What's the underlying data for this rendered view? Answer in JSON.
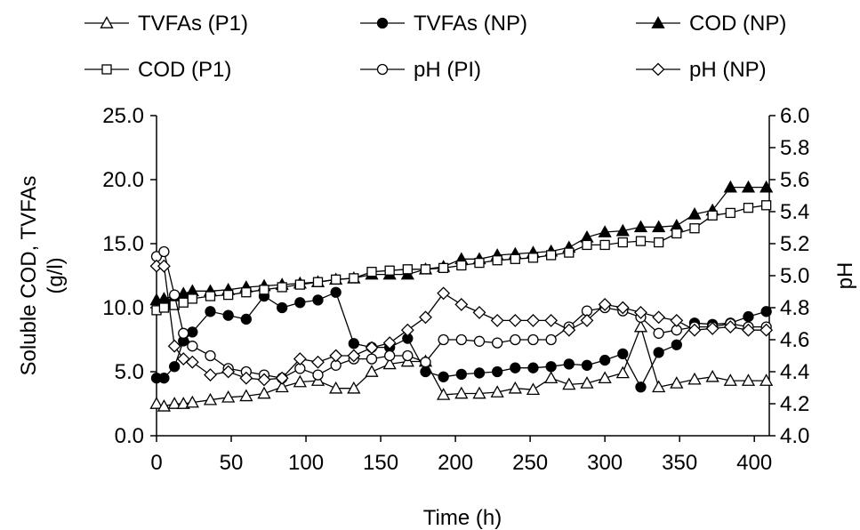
{
  "chart_data": {
    "type": "line",
    "title": "",
    "xlabel": "Time (h)",
    "ylabel": "Soluble COD, TVFAs (g/l)",
    "ylabel_lines": [
      "Soluble COD, TVFAs",
      "(g/l)"
    ],
    "y2label": "pH",
    "xlim": [
      0,
      410
    ],
    "xticks": [
      0,
      50,
      100,
      150,
      200,
      250,
      300,
      350,
      400
    ],
    "xtick_labels": [
      "0",
      "50",
      "100",
      "150",
      "200",
      "250",
      "300",
      "350",
      "400"
    ],
    "ylim": [
      0,
      25
    ],
    "yticks": [
      0,
      5,
      10,
      15,
      20,
      25
    ],
    "ytick_labels": [
      "0.0",
      "5.0",
      "10.0",
      "15.0",
      "20.0",
      "25.0"
    ],
    "y2lim": [
      4.0,
      6.0
    ],
    "y2ticks": [
      4.0,
      4.2,
      4.4,
      4.6,
      4.8,
      5.0,
      5.2,
      5.4,
      5.6,
      5.8,
      6.0
    ],
    "y2tick_labels": [
      "4.0",
      "4.2",
      "4.4",
      "4.6",
      "4.8",
      "5.0",
      "5.2",
      "5.4",
      "5.6",
      "5.8",
      "6.0"
    ],
    "grid": false,
    "legend_position": "top",
    "series": [
      {
        "name": "TVFAs (P1)",
        "marker": "triangle-open",
        "axis": "left",
        "x": [
          0,
          5,
          12,
          18,
          24,
          36,
          48,
          60,
          72,
          84,
          96,
          108,
          120,
          132,
          144,
          156,
          168,
          180,
          192,
          204,
          216,
          228,
          240,
          252,
          264,
          276,
          288,
          300,
          312,
          324,
          336,
          348,
          360,
          372,
          384,
          396,
          408
        ],
        "y": [
          2.5,
          2.3,
          2.5,
          2.5,
          2.6,
          2.8,
          3.0,
          3.1,
          3.3,
          3.8,
          4.2,
          4.3,
          3.7,
          3.7,
          5.0,
          5.6,
          5.8,
          5.8,
          3.2,
          3.3,
          3.3,
          3.4,
          3.7,
          3.6,
          4.5,
          4.0,
          4.1,
          4.5,
          4.9,
          8.5,
          3.8,
          4.1,
          4.4,
          4.6,
          4.3,
          4.3,
          4.3
        ]
      },
      {
        "name": "TVFAs (NP)",
        "marker": "circle-filled",
        "axis": "left",
        "x": [
          0,
          5,
          12,
          18,
          24,
          36,
          48,
          60,
          72,
          84,
          96,
          108,
          120,
          132,
          144,
          156,
          168,
          180,
          192,
          204,
          216,
          228,
          240,
          252,
          264,
          276,
          288,
          300,
          312,
          324,
          336,
          348,
          360,
          372,
          384,
          396,
          408
        ],
        "y": [
          4.5,
          4.5,
          5.4,
          7.4,
          8.1,
          9.7,
          9.4,
          9.1,
          10.9,
          10.0,
          10.4,
          10.6,
          11.2,
          7.2,
          6.9,
          6.9,
          7.6,
          5.0,
          4.6,
          4.8,
          4.9,
          5.0,
          5.3,
          5.3,
          5.4,
          5.6,
          5.5,
          5.9,
          6.4,
          3.8,
          6.5,
          7.1,
          8.8,
          8.7,
          8.8,
          9.3,
          9.7
        ]
      },
      {
        "name": "COD (NP)",
        "marker": "triangle-filled",
        "axis": "left",
        "x": [
          0,
          5,
          12,
          18,
          24,
          36,
          48,
          60,
          72,
          84,
          96,
          108,
          120,
          132,
          144,
          156,
          168,
          180,
          192,
          204,
          216,
          228,
          240,
          252,
          264,
          276,
          288,
          300,
          312,
          324,
          336,
          348,
          360,
          372,
          384,
          396,
          408
        ],
        "y": [
          10.6,
          10.7,
          10.9,
          11.1,
          11.3,
          11.3,
          11.4,
          11.6,
          11.7,
          11.8,
          11.9,
          12.0,
          12.2,
          12.3,
          12.6,
          12.6,
          12.6,
          13.0,
          13.2,
          13.8,
          13.8,
          14.1,
          14.2,
          14.3,
          14.4,
          14.7,
          15.5,
          15.9,
          16.0,
          16.3,
          16.3,
          16.4,
          17.3,
          17.6,
          19.4,
          19.4,
          19.4
        ]
      },
      {
        "name": "COD (P1)",
        "marker": "square-open",
        "axis": "left",
        "x": [
          0,
          5,
          12,
          18,
          24,
          36,
          48,
          60,
          72,
          84,
          96,
          108,
          120,
          132,
          144,
          156,
          168,
          180,
          192,
          204,
          216,
          228,
          240,
          252,
          264,
          276,
          288,
          300,
          312,
          324,
          336,
          348,
          360,
          372,
          384,
          396,
          408
        ],
        "y": [
          9.8,
          10.0,
          10.2,
          10.4,
          10.7,
          10.9,
          11.0,
          11.2,
          11.4,
          11.6,
          11.8,
          12.0,
          12.2,
          12.3,
          12.8,
          12.9,
          13.0,
          13.0,
          13.1,
          13.3,
          13.5,
          13.7,
          13.8,
          13.9,
          14.1,
          14.3,
          14.9,
          14.9,
          15.1,
          15.2,
          15.1,
          15.8,
          16.2,
          17.2,
          17.4,
          17.8,
          18.0
        ]
      },
      {
        "name": "pH (PI)",
        "marker": "circle-open",
        "axis": "right",
        "x": [
          0,
          5,
          12,
          18,
          24,
          36,
          48,
          60,
          72,
          84,
          96,
          108,
          120,
          132,
          144,
          156,
          168,
          180,
          192,
          204,
          216,
          228,
          240,
          252,
          264,
          276,
          288,
          300,
          312,
          324,
          336,
          348,
          360,
          372,
          384,
          396,
          408
        ],
        "y": [
          5.12,
          5.15,
          4.88,
          4.64,
          4.56,
          4.5,
          4.42,
          4.4,
          4.38,
          4.36,
          4.42,
          4.38,
          4.44,
          4.48,
          4.48,
          4.5,
          4.5,
          4.46,
          4.6,
          4.6,
          4.59,
          4.58,
          4.6,
          4.6,
          4.6,
          4.68,
          4.78,
          4.8,
          4.78,
          4.74,
          4.64,
          4.66,
          4.68,
          4.68,
          4.7,
          4.68,
          4.68
        ]
      },
      {
        "name": "pH (NP)",
        "marker": "diamond-open",
        "axis": "right",
        "x": [
          0,
          5,
          12,
          18,
          24,
          36,
          48,
          60,
          72,
          84,
          96,
          108,
          120,
          132,
          144,
          156,
          168,
          180,
          192,
          204,
          216,
          228,
          240,
          252,
          264,
          276,
          288,
          300,
          312,
          324,
          336,
          348,
          360,
          372,
          384,
          396,
          408
        ],
        "y": [
          5.06,
          5.06,
          4.56,
          4.48,
          4.46,
          4.38,
          4.4,
          4.36,
          4.35,
          4.36,
          4.48,
          4.46,
          4.5,
          4.5,
          4.55,
          4.58,
          4.66,
          4.74,
          4.89,
          4.82,
          4.77,
          4.72,
          4.72,
          4.72,
          4.72,
          4.66,
          4.72,
          4.82,
          4.8,
          4.77,
          4.74,
          4.72,
          4.66,
          4.67,
          4.68,
          4.66,
          4.66
        ]
      }
    ]
  }
}
